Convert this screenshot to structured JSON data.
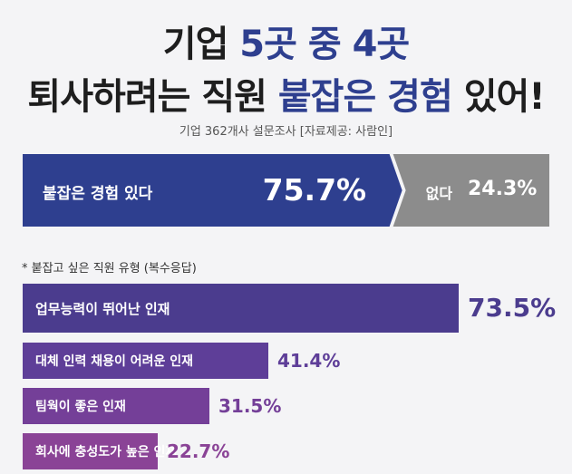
{
  "header": {
    "title_line1_prefix": "기업 ",
    "title_line1_highlight": "5곳 중 4곳",
    "title_line2_prefix": "퇴사하려는 직원 ",
    "title_line2_highlight": "붙잡은 경험",
    "title_line2_suffix": " 있어!",
    "subtitle": "기업 362개사 설문조사 [자료제공: 사람인]"
  },
  "colors": {
    "navy": "#2e3f8f",
    "gray": "#8c8c8c",
    "bar1": "#4b3c8e",
    "bar2": "#5e3e98",
    "bar3": "#743f98",
    "bar4": "#8a4396"
  },
  "chart_data": [
    {
      "type": "bar",
      "orientation": "horizontal-stacked",
      "categories": [
        "붙잡은 경험 있다",
        "없다"
      ],
      "values": [
        75.7,
        24.3
      ],
      "value_labels": [
        "75.7%",
        "24.3%"
      ],
      "unit": "%"
    },
    {
      "type": "bar",
      "orientation": "horizontal",
      "title": "* 붙잡고 싶은 직원 유형 (복수응답)",
      "categories": [
        "업무능력이 뛰어난 인재",
        "대체 인력 채용이 어려운 인재",
        "팀웍이 좋은 인재",
        "회사에 충성도가 높은 인재"
      ],
      "values": [
        73.5,
        41.4,
        31.5,
        22.7
      ],
      "value_labels": [
        "73.5%",
        "41.4%",
        "31.5%",
        "22.7%"
      ],
      "unit": "%"
    }
  ]
}
